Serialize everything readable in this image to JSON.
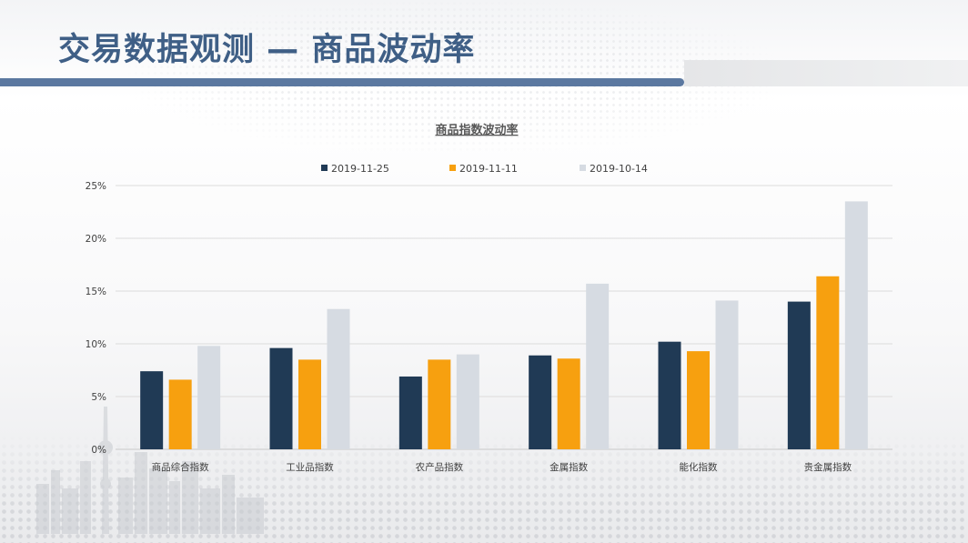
{
  "slide": {
    "title": "交易数据观测 — 商品波动率"
  },
  "colors": {
    "title_text": "#3f5f86",
    "title_bar": "#5b78a0",
    "series": [
      "#203a55",
      "#f7a00f",
      "#d6dbe2"
    ]
  },
  "chart_data": {
    "type": "bar",
    "title": "商品指数波动率",
    "categories": [
      "商品综合指数",
      "工业品指数",
      "农产品指数",
      "金属指数",
      "能化指数",
      "贵金属指数"
    ],
    "series": [
      {
        "name": "2019-11-25",
        "values": [
          7.4,
          9.6,
          6.9,
          8.9,
          10.2,
          14.0
        ]
      },
      {
        "name": "2019-11-11",
        "values": [
          6.6,
          8.5,
          8.5,
          8.6,
          9.3,
          16.4
        ]
      },
      {
        "name": "2019-10-14",
        "values": [
          9.8,
          13.3,
          9.0,
          15.7,
          14.1,
          23.5
        ]
      }
    ],
    "y_ticks": [
      "0%",
      "5%",
      "10%",
      "15%",
      "20%",
      "25%"
    ],
    "ylim": [
      0,
      25
    ],
    "y_unit": "%",
    "xlabel": "",
    "ylabel": "",
    "grid": true,
    "legend_position": "top"
  }
}
